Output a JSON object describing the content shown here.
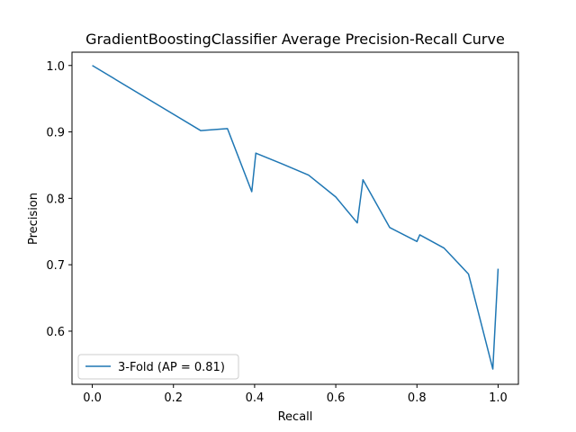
{
  "chart_data": {
    "type": "line",
    "title": "GradientBoostingClassifier Average Precision-Recall Curve",
    "xlabel": "Recall",
    "ylabel": "Precision",
    "xlim": [
      -0.05,
      1.05
    ],
    "ylim": [
      0.52,
      1.02
    ],
    "x_ticks": [
      0.0,
      0.2,
      0.4,
      0.6,
      0.8,
      1.0
    ],
    "x_tick_labels": [
      "0.0",
      "0.2",
      "0.4",
      "0.6",
      "0.8",
      "1.0"
    ],
    "y_ticks": [
      0.6,
      0.7,
      0.8,
      0.9,
      1.0
    ],
    "y_tick_labels": [
      "0.6",
      "0.7",
      "0.8",
      "0.9",
      "1.0"
    ],
    "grid": false,
    "legend_position": "lower-left",
    "series": [
      {
        "name": "3-Fold (AP = 0.81)",
        "color": "#1f77b4",
        "x": [
          0.0,
          0.267,
          0.333,
          0.393,
          0.403,
          0.467,
          0.533,
          0.6,
          0.653,
          0.667,
          0.733,
          0.8,
          0.807,
          0.867,
          0.927,
          0.933,
          0.987,
          1.0
        ],
        "y": [
          1.0,
          0.902,
          0.905,
          0.81,
          0.868,
          0.852,
          0.835,
          0.802,
          0.763,
          0.828,
          0.756,
          0.735,
          0.745,
          0.725,
          0.686,
          0.672,
          0.543,
          0.694
        ]
      }
    ]
  }
}
